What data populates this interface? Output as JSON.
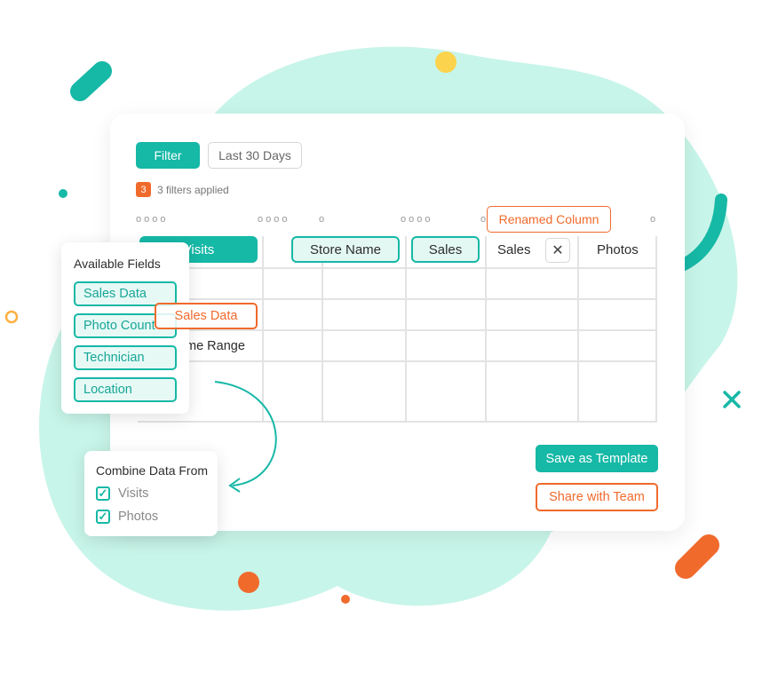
{
  "toolbar": {
    "filter_label": "Filter",
    "range_label": "Last 30 Days"
  },
  "filters": {
    "count": "3",
    "applied_text": "3 filters applied"
  },
  "renamed_label": "Renamed Column",
  "table": {
    "headers": [
      "Visits",
      "Store Name",
      "Sales",
      "Sales",
      "Photos"
    ],
    "cell_text": "me Range"
  },
  "available_fields": {
    "title": "Available Fields",
    "items": [
      "Sales Data",
      "Photo Count",
      "Technician",
      "Location"
    ]
  },
  "dragging_label": "Sales Data",
  "combine": {
    "title": "Combine Data From",
    "options": [
      {
        "label": "Visits",
        "checked": true
      },
      {
        "label": "Photos",
        "checked": true
      }
    ]
  },
  "actions": {
    "save_label": "Save as Template",
    "share_label": "Share with Team"
  },
  "colors": {
    "teal": "#16b8a6",
    "orange": "#f06a2c",
    "mint": "#c8f5e9",
    "yellow": "#fcd34d"
  }
}
